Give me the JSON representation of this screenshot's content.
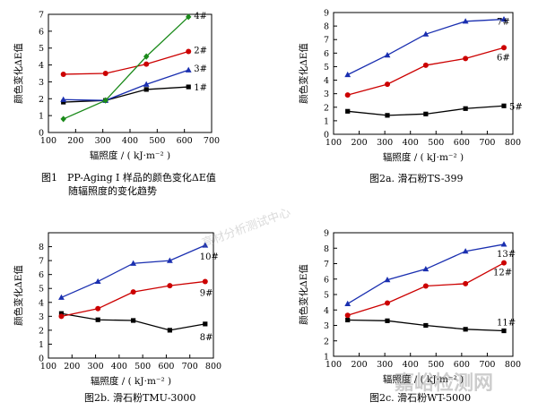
{
  "chart_data": [
    {
      "type": "line",
      "xlabel": "辐照度 / ( kJ·m⁻² )",
      "ylabel": "颜色变化ΔE值",
      "xlim": [
        100,
        700
      ],
      "ylim": [
        0,
        7
      ],
      "xticks": [
        100,
        200,
        300,
        400,
        500,
        600,
        700
      ],
      "yticks": [
        0,
        1,
        2,
        3,
        4,
        5,
        6,
        7
      ],
      "x": [
        155,
        310,
        460,
        615
      ],
      "series": [
        {
          "name": "1#",
          "values": [
            1.8,
            1.9,
            2.55,
            2.7
          ],
          "color": "#000000",
          "marker": "square"
        },
        {
          "name": "2#",
          "values": [
            3.45,
            3.5,
            4.05,
            4.8
          ],
          "color": "#cc0000",
          "marker": "circle"
        },
        {
          "name": "3#",
          "values": [
            1.95,
            1.9,
            2.85,
            3.7
          ],
          "color": "#1a2fb0",
          "marker": "triangle"
        },
        {
          "name": "4#",
          "values": [
            0.8,
            1.9,
            4.5,
            6.85
          ],
          "color": "#1a8a1a",
          "marker": "diamond"
        }
      ],
      "caption": [
        "图1　PP-Aging Ⅰ 样品的颜色变化ΔE值",
        "随辐照度的变化趋势"
      ]
    },
    {
      "type": "line",
      "xlabel": "辐照度 / ( kJ·m⁻² )",
      "ylabel": "颜色变化ΔE值",
      "xlim": [
        100,
        800
      ],
      "ylim": [
        0,
        9
      ],
      "xticks": [
        100,
        200,
        300,
        400,
        500,
        600,
        700,
        800
      ],
      "yticks": [
        0,
        1,
        2,
        3,
        4,
        5,
        6,
        7,
        8,
        9
      ],
      "x": [
        155,
        310,
        460,
        615,
        765
      ],
      "series": [
        {
          "name": "5#",
          "values": [
            1.7,
            1.4,
            1.5,
            1.9,
            2.1
          ],
          "color": "#000000",
          "marker": "square"
        },
        {
          "name": "6#",
          "values": [
            2.9,
            3.7,
            5.1,
            5.6,
            6.4
          ],
          "color": "#cc0000",
          "marker": "circle"
        },
        {
          "name": "7#",
          "values": [
            4.4,
            5.85,
            7.4,
            8.35,
            8.5
          ],
          "color": "#1a2fb0",
          "marker": "triangle"
        }
      ],
      "caption": [
        "图2a. 滑石粉TS-399"
      ]
    },
    {
      "type": "line",
      "xlabel": "辐照度 / ( kJ·m⁻² )",
      "ylabel": "颜色变化ΔE值",
      "xlim": [
        100,
        800
      ],
      "ylim": [
        0,
        9
      ],
      "xticks": [
        100,
        200,
        300,
        400,
        500,
        600,
        700,
        800
      ],
      "yticks": [
        0,
        1,
        2,
        3,
        4,
        5,
        6,
        7,
        8
      ],
      "x": [
        155,
        310,
        460,
        615,
        765
      ],
      "series": [
        {
          "name": "8#",
          "values": [
            3.2,
            2.75,
            2.7,
            2.0,
            2.45
          ],
          "color": "#000000",
          "marker": "square"
        },
        {
          "name": "9#",
          "values": [
            3.0,
            3.55,
            4.75,
            5.2,
            5.5
          ],
          "color": "#cc0000",
          "marker": "circle"
        },
        {
          "name": "10#",
          "values": [
            4.35,
            5.5,
            6.8,
            7.0,
            8.1
          ],
          "color": "#1a2fb0",
          "marker": "triangle"
        }
      ],
      "caption": [
        "图2b. 滑石粉TMU-3000"
      ]
    },
    {
      "type": "line",
      "xlabel": "辐照度 / ( kJ·m⁻² )",
      "ylabel": "颜色变化ΔE值",
      "xlim": [
        100,
        800
      ],
      "ylim": [
        1,
        9
      ],
      "xticks": [
        100,
        200,
        300,
        400,
        500,
        600,
        700,
        800
      ],
      "yticks": [
        1,
        2,
        3,
        4,
        5,
        6,
        7,
        8,
        9
      ],
      "x": [
        155,
        310,
        460,
        615,
        765
      ],
      "series": [
        {
          "name": "11#",
          "values": [
            3.35,
            3.3,
            3.0,
            2.75,
            2.65
          ],
          "color": "#000000",
          "marker": "square"
        },
        {
          "name": "12#",
          "values": [
            3.65,
            4.45,
            5.55,
            5.7,
            7.05
          ],
          "color": "#cc0000",
          "marker": "circle"
        },
        {
          "name": "13#",
          "values": [
            4.4,
            5.95,
            6.65,
            7.8,
            8.25
          ],
          "color": "#1a2fb0",
          "marker": "triangle"
        }
      ],
      "caption": [
        "图2c. 滑石粉WT-5000"
      ]
    }
  ],
  "watermarks": [
    "嘉峪检测网",
    "高材分析测试中心"
  ]
}
